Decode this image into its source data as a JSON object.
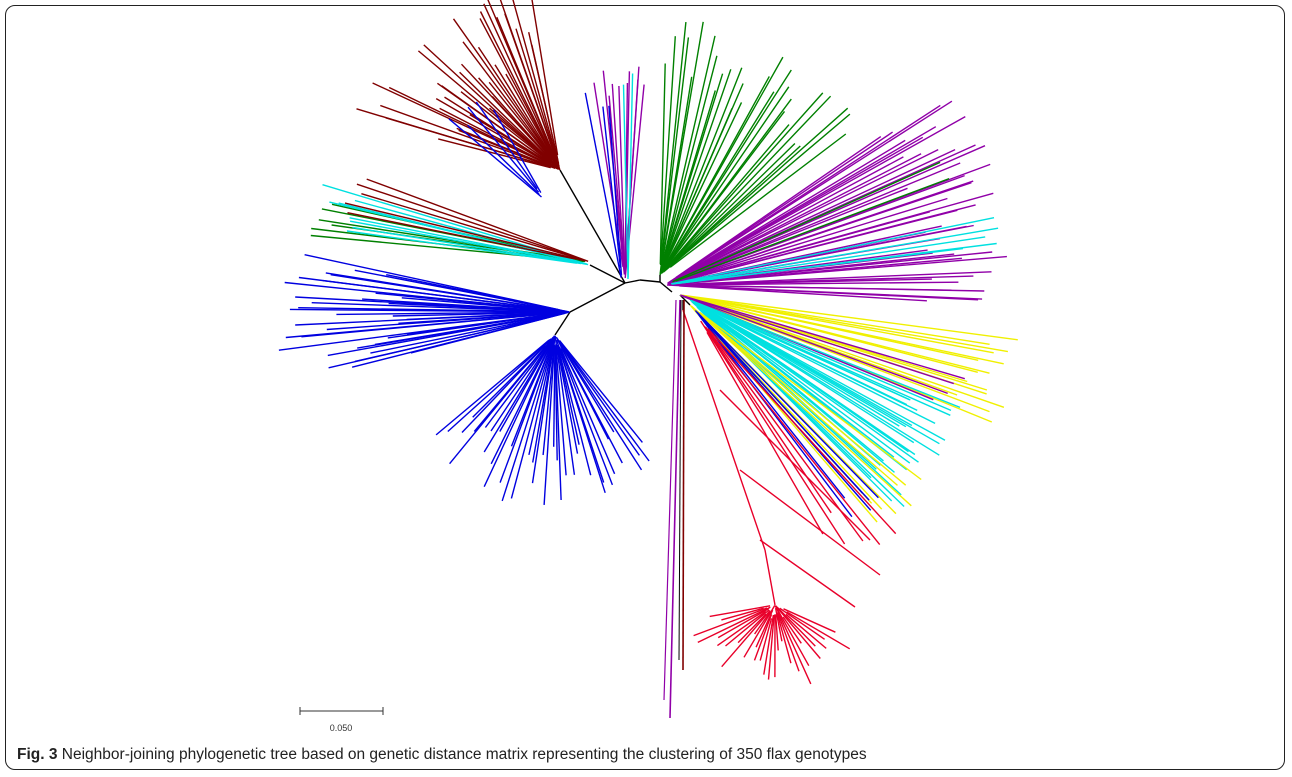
{
  "figure": {
    "label": "Fig. 3",
    "caption": "Neighbor-joining phylogenetic tree based on genetic distance matrix representing the clustering of 350 flax genotypes",
    "scale_label": "0.050"
  }
}
